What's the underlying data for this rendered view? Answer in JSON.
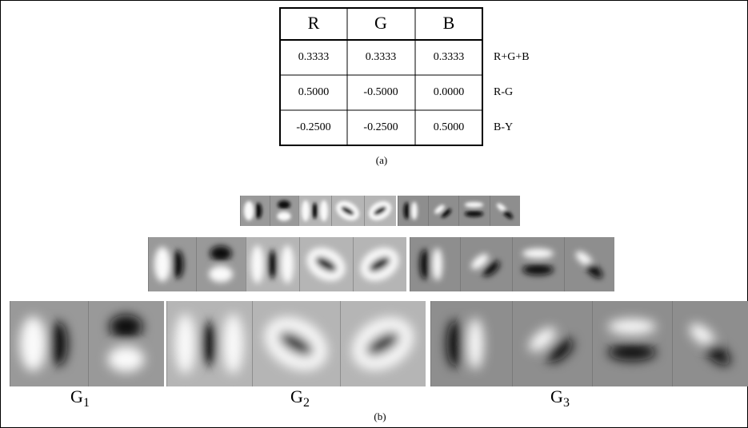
{
  "table": {
    "headers": [
      "R",
      "G",
      "B"
    ],
    "rows": [
      {
        "values": [
          "0.3333",
          "0.3333",
          "0.3333"
        ],
        "label": "R+G+B"
      },
      {
        "values": [
          "0.5000",
          "-0.5000",
          "0.0000"
        ],
        "label": "R-G"
      },
      {
        "values": [
          "-0.2500",
          "-0.2500",
          "0.5000"
        ],
        "label": "B-Y"
      }
    ]
  },
  "caption_a": "(a)",
  "filter_labels": [
    {
      "text": "G",
      "sub": "1"
    },
    {
      "text": "G",
      "sub": "2"
    },
    {
      "text": "G",
      "sub": "3"
    }
  ],
  "caption_b": "(b)"
}
